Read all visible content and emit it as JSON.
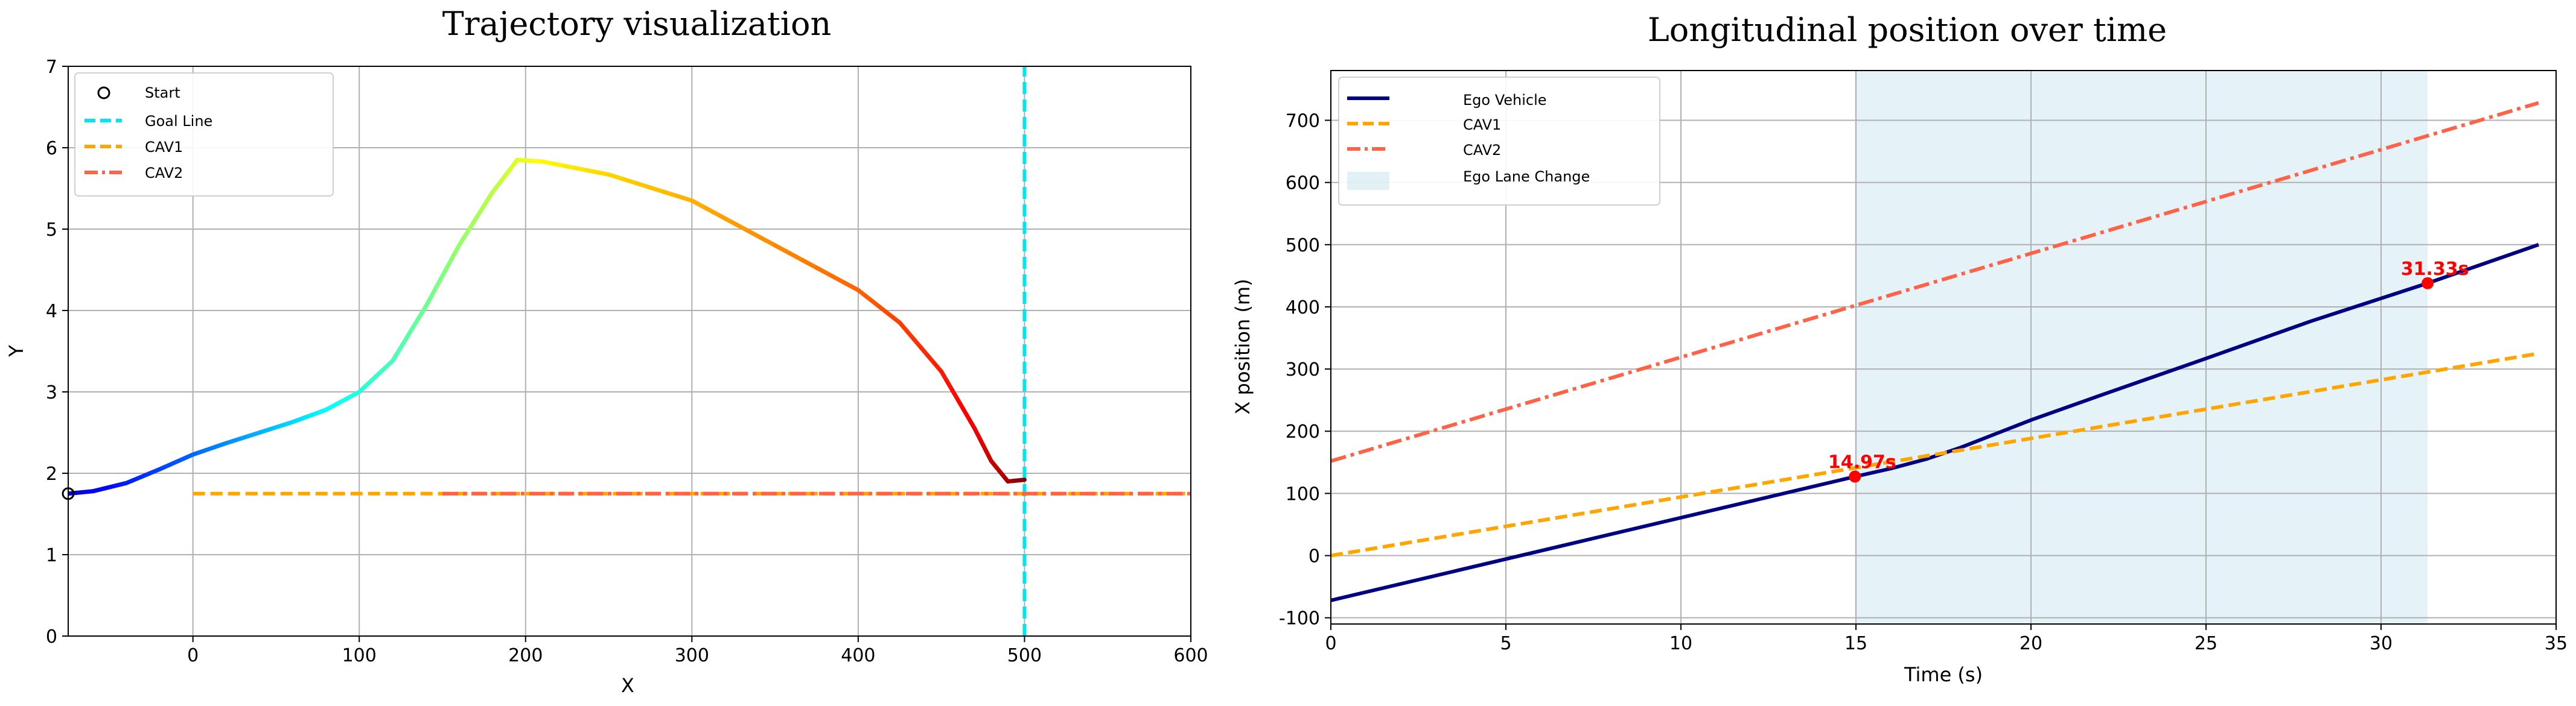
{
  "chart_data": [
    {
      "type": "line",
      "title": "Trajectory visualization",
      "xlabel": "X",
      "ylabel": "Y",
      "xlim": [
        -75,
        600
      ],
      "ylim": [
        0,
        7
      ],
      "xticks": [
        0,
        100,
        200,
        300,
        400,
        500,
        600
      ],
      "yticks": [
        0,
        1,
        2,
        3,
        4,
        5,
        6,
        7
      ],
      "grid": true,
      "legend_position": "top-left",
      "legend": [
        "Start",
        "Goal Line",
        "CAV1",
        "CAV2"
      ],
      "colors": {
        "goal": "#00e5ee",
        "cav1": "#ffa500",
        "cav2": "#ff6347",
        "start": "#000000"
      },
      "series": [
        {
          "name": "Start",
          "style": "marker-circle",
          "x": [
            -75
          ],
          "y": [
            1.75
          ]
        },
        {
          "name": "Goal Line",
          "style": "dashed-vertical",
          "x": [
            500,
            500
          ],
          "y": [
            0,
            7
          ]
        },
        {
          "name": "CAV1",
          "style": "dashed",
          "x": [
            0,
            600
          ],
          "y": [
            1.75,
            1.75
          ]
        },
        {
          "name": "CAV2",
          "style": "dashdot",
          "x": [
            150,
            600
          ],
          "y": [
            1.75,
            1.75
          ]
        },
        {
          "name": "",
          "style": "colormap-jet",
          "x": [
            -75,
            -60,
            -40,
            -20,
            0,
            20,
            40,
            60,
            80,
            100,
            120,
            140,
            160,
            180,
            195,
            210,
            250,
            300,
            350,
            400,
            425,
            450,
            470,
            480,
            490,
            500
          ],
          "y": [
            1.75,
            1.78,
            1.88,
            2.05,
            2.23,
            2.37,
            2.5,
            2.63,
            2.78,
            3.0,
            3.38,
            4.05,
            4.8,
            5.45,
            5.85,
            5.83,
            5.67,
            5.35,
            4.8,
            4.25,
            3.85,
            3.25,
            2.55,
            2.15,
            1.9,
            1.92
          ]
        }
      ]
    },
    {
      "type": "line",
      "title": "Longitudinal position over time",
      "xlabel": "Time (s)",
      "ylabel": "X position (m)",
      "xlim": [
        0,
        35
      ],
      "ylim": [
        -110,
        780
      ],
      "xticks": [
        0,
        5,
        10,
        15,
        20,
        25,
        30,
        35
      ],
      "yticks": [
        -100,
        0,
        100,
        200,
        300,
        400,
        500,
        600,
        700
      ],
      "grid": true,
      "legend_position": "top-left",
      "legend": [
        "Ego Vehicle",
        "CAV1",
        "CAV2",
        "Ego Lane Change"
      ],
      "colors": {
        "ego": "#000080",
        "cav1": "#ffa500",
        "cav2": "#ff6347",
        "shade": "#add8e6",
        "marker": "#ff0000"
      },
      "shaded_region": {
        "name": "Ego Lane Change",
        "x": [
          14.97,
          31.33
        ]
      },
      "series": [
        {
          "name": "Ego Vehicle",
          "style": "solid",
          "x": [
            0,
            14.97,
            16,
            17,
            18,
            19,
            20,
            22,
            25,
            28,
            31.33,
            34.5
          ],
          "y": [
            -72,
            127,
            140,
            155,
            174,
            196,
            218,
            258,
            317,
            377,
            438,
            500
          ]
        },
        {
          "name": "CAV1",
          "style": "dashed",
          "x": [
            0,
            34.5
          ],
          "y": [
            0,
            325
          ]
        },
        {
          "name": "CAV2",
          "style": "dashdot",
          "x": [
            0,
            34.5
          ],
          "y": [
            152,
            728
          ]
        }
      ],
      "annotations": [
        {
          "text": "14.97s",
          "x": 14.97,
          "y": 127
        },
        {
          "text": "31.33s",
          "x": 31.33,
          "y": 438
        }
      ]
    }
  ]
}
